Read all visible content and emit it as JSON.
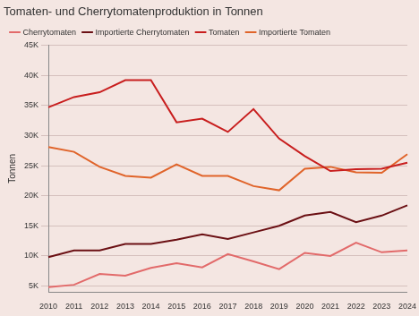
{
  "chart_data": {
    "type": "line",
    "title": "Tomaten- und Cherrytomatenproduktion in Tonnen",
    "y_label": "Tonnen",
    "categories": [
      "2010",
      "2011",
      "2012",
      "2013",
      "2014",
      "2015",
      "2016",
      "2017",
      "2018",
      "2019",
      "2020",
      "2021",
      "2022",
      "2023",
      "2024"
    ],
    "series": [
      {
        "name": "Cherrytomaten",
        "color": "#e26a6a",
        "values": [
          4800,
          5200,
          7000,
          6700,
          8000,
          8800,
          8100,
          10300,
          9100,
          7800,
          10500,
          10000,
          12200,
          10600,
          10900
        ]
      },
      {
        "name": "Importierte Cherrytomaten",
        "color": "#6b1014",
        "values": [
          9800,
          10900,
          10900,
          12000,
          12000,
          12700,
          13600,
          12800,
          13900,
          15000,
          16700,
          17300,
          15600,
          16700,
          18400
        ]
      },
      {
        "name": "Tomaten",
        "color": "#c81e1e",
        "values": [
          34700,
          36400,
          37200,
          39200,
          39200,
          32200,
          32800,
          30600,
          34400,
          29500,
          26600,
          24100,
          24400,
          24500,
          25500
        ]
      },
      {
        "name": "Importierte Tomaten",
        "color": "#e0642a",
        "values": [
          28100,
          27300,
          24800,
          23300,
          23000,
          25200,
          23300,
          23300,
          21600,
          20900,
          24500,
          24800,
          23900,
          23800,
          26900
        ]
      }
    ],
    "ylim": [
      4000,
      45000
    ],
    "yticks": [
      {
        "value": 5000,
        "label": "5K"
      },
      {
        "value": 10000,
        "label": "10K"
      },
      {
        "value": 15000,
        "label": "15K"
      },
      {
        "value": 20000,
        "label": "20K"
      },
      {
        "value": 25000,
        "label": "25K"
      },
      {
        "value": 30000,
        "label": "30K"
      },
      {
        "value": 35000,
        "label": "35K"
      },
      {
        "value": 40000,
        "label": "40K"
      },
      {
        "value": 45000,
        "label": "45K"
      }
    ],
    "grid": true,
    "legend": "top-left"
  }
}
